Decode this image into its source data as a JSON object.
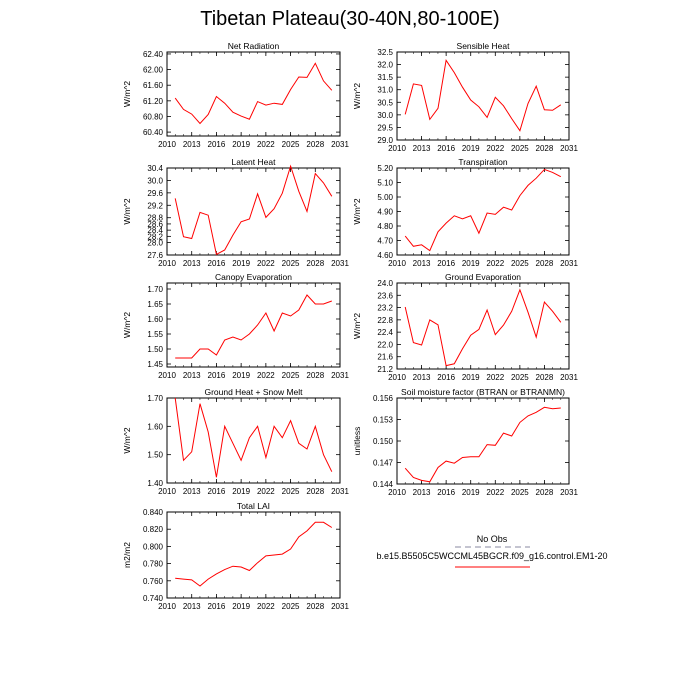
{
  "title": "Tibetan Plateau(30-40N,80-100E)",
  "legend": {
    "obs_label": "No Obs",
    "model_label": "b.e15.B5505C5WCCML45BGCR.f09_g16.control.EM1-20",
    "obs_color": "#b0b0c0",
    "model_color": "#ff0000"
  },
  "chart_data": [
    {
      "type": "line",
      "title": "Net Radiation",
      "ylabel": "W/m^2",
      "x": [
        2011,
        2012,
        2013,
        2014,
        2015,
        2016,
        2017,
        2018,
        2019,
        2020,
        2021,
        2022,
        2023,
        2024,
        2025,
        2026,
        2027,
        2028,
        2029,
        2030
      ],
      "xticks": [
        "2010",
        "2013",
        "2016",
        "2019",
        "2022",
        "2025",
        "2028",
        "2031"
      ],
      "xlim": [
        2010,
        2031
      ],
      "ylim": [
        60.3,
        62.45
      ],
      "yticks": [
        "60.40",
        "60.80",
        "61.20",
        "61.60",
        "62.00",
        "62.40"
      ],
      "color": "#ff0000",
      "values": [
        61.27,
        60.98,
        60.86,
        60.62,
        60.85,
        61.31,
        61.14,
        60.91,
        60.81,
        60.73,
        61.18,
        61.09,
        61.14,
        61.11,
        61.49,
        61.81,
        61.8,
        62.16,
        61.71,
        61.47
      ]
    },
    {
      "type": "line",
      "title": "Sensible Heat",
      "ylabel": "W/m^2",
      "x": [
        2011,
        2012,
        2013,
        2014,
        2015,
        2016,
        2017,
        2018,
        2019,
        2020,
        2021,
        2022,
        2023,
        2024,
        2025,
        2026,
        2027,
        2028,
        2029,
        2030
      ],
      "xticks": [
        "2010",
        "2013",
        "2016",
        "2019",
        "2022",
        "2025",
        "2028",
        "2031"
      ],
      "xlim": [
        2010,
        2031
      ],
      "ylim": [
        29.0,
        32.5
      ],
      "yticks": [
        "29.0",
        "29.5",
        "30.0",
        "30.5",
        "31.0",
        "31.5",
        "32.0",
        "32.5"
      ],
      "color": "#ff0000",
      "values": [
        30.02,
        31.23,
        31.17,
        29.82,
        30.26,
        32.17,
        31.68,
        31.1,
        30.59,
        30.32,
        29.9,
        30.7,
        30.36,
        29.85,
        29.37,
        30.45,
        31.14,
        30.2,
        30.18,
        30.4
      ]
    },
    {
      "type": "line",
      "title": "Latent Heat",
      "ylabel": "W/m^2",
      "x": [
        2011,
        2012,
        2013,
        2014,
        2015,
        2016,
        2017,
        2018,
        2019,
        2020,
        2021,
        2022,
        2023,
        2024,
        2025,
        2026,
        2027,
        2028,
        2029,
        2030
      ],
      "xticks": [
        "2010",
        "2013",
        "2016",
        "2019",
        "2022",
        "2025",
        "2028",
        "2031"
      ],
      "xlim": [
        2010,
        2031
      ],
      "ylim": [
        27.6,
        30.4
      ],
      "yticks": [
        "27.6",
        "28.0",
        "28.2",
        "28.4",
        "28.6",
        "28.8",
        "29.2",
        "29.6",
        "30.0",
        "30.4"
      ],
      "color": "#ff0000",
      "values": [
        29.42,
        28.19,
        28.13,
        28.97,
        28.88,
        27.62,
        27.76,
        28.24,
        28.67,
        28.76,
        29.57,
        28.81,
        29.09,
        29.59,
        30.46,
        29.65,
        29.0,
        30.22,
        29.92,
        29.49
      ]
    },
    {
      "type": "line",
      "title": "Transpiration",
      "ylabel": "W/m^2",
      "x": [
        2011,
        2012,
        2013,
        2014,
        2015,
        2016,
        2017,
        2018,
        2019,
        2020,
        2021,
        2022,
        2023,
        2024,
        2025,
        2026,
        2027,
        2028,
        2029,
        2030
      ],
      "xticks": [
        "2010",
        "2013",
        "2016",
        "2019",
        "2022",
        "2025",
        "2028",
        "2031"
      ],
      "xlim": [
        2010,
        2031
      ],
      "ylim": [
        4.6,
        5.2
      ],
      "yticks": [
        "4.60",
        "4.70",
        "4.80",
        "4.90",
        "5.00",
        "5.10",
        "5.20"
      ],
      "color": "#ff0000",
      "values": [
        4.73,
        4.66,
        4.67,
        4.63,
        4.76,
        4.82,
        4.87,
        4.85,
        4.87,
        4.75,
        4.89,
        4.88,
        4.93,
        4.91,
        5.01,
        5.08,
        5.13,
        5.19,
        5.17,
        5.14
      ]
    },
    {
      "type": "line",
      "title": "Canopy Evaporation",
      "ylabel": "W/m^2",
      "x": [
        2011,
        2012,
        2013,
        2014,
        2015,
        2016,
        2017,
        2018,
        2019,
        2020,
        2021,
        2022,
        2023,
        2024,
        2025,
        2026,
        2027,
        2028,
        2029,
        2030
      ],
      "xticks": [
        "2010",
        "2013",
        "2016",
        "2019",
        "2022",
        "2025",
        "2028",
        "2031"
      ],
      "xlim": [
        2010,
        2031
      ],
      "ylim": [
        1.44,
        1.72
      ],
      "yticks": [
        "1.45",
        "1.50",
        "1.55",
        "1.60",
        "1.65",
        "1.70"
      ],
      "color": "#ff0000",
      "values": [
        1.47,
        1.47,
        1.47,
        1.5,
        1.5,
        1.48,
        1.53,
        1.54,
        1.53,
        1.55,
        1.58,
        1.62,
        1.56,
        1.62,
        1.61,
        1.63,
        1.68,
        1.65,
        1.65,
        1.66
      ]
    },
    {
      "type": "line",
      "title": "Ground Evaporation",
      "ylabel": "W/m^2",
      "x": [
        2011,
        2012,
        2013,
        2014,
        2015,
        2016,
        2017,
        2018,
        2019,
        2020,
        2021,
        2022,
        2023,
        2024,
        2025,
        2026,
        2027,
        2028,
        2029,
        2030
      ],
      "xticks": [
        "2010",
        "2013",
        "2016",
        "2019",
        "2022",
        "2025",
        "2028",
        "2031"
      ],
      "xlim": [
        2010,
        2031
      ],
      "ylim": [
        21.2,
        24.0
      ],
      "yticks": [
        "21.2",
        "21.6",
        "22.0",
        "22.4",
        "22.8",
        "23.2",
        "23.6",
        "24.0"
      ],
      "color": "#ff0000",
      "values": [
        23.22,
        22.06,
        21.98,
        22.8,
        22.64,
        21.31,
        21.37,
        21.86,
        22.3,
        22.49,
        23.12,
        22.32,
        22.63,
        23.08,
        23.78,
        23.05,
        22.24,
        23.38,
        23.08,
        22.72
      ]
    },
    {
      "type": "line",
      "title": "Ground Heat + Snow Melt",
      "ylabel": "W/m^2",
      "x": [
        2011,
        2012,
        2013,
        2014,
        2015,
        2016,
        2017,
        2018,
        2019,
        2020,
        2021,
        2022,
        2023,
        2024,
        2025,
        2026,
        2027,
        2028,
        2029,
        2030
      ],
      "xticks": [
        "2010",
        "2013",
        "2016",
        "2019",
        "2022",
        "2025",
        "2028",
        "2031"
      ],
      "xlim": [
        2010,
        2031
      ],
      "ylim": [
        1.4,
        1.7
      ],
      "yticks": [
        "1.40",
        "1.50",
        "1.60",
        "1.70"
      ],
      "color": "#ff0000",
      "values": [
        1.7,
        1.48,
        1.51,
        1.68,
        1.58,
        1.42,
        1.6,
        1.54,
        1.48,
        1.56,
        1.6,
        1.49,
        1.6,
        1.56,
        1.62,
        1.54,
        1.52,
        1.6,
        1.5,
        1.44
      ]
    },
    {
      "type": "line",
      "title": "Soil moisture factor (BTRAN or BTRANMN)",
      "ylabel": "unitless",
      "x": [
        2011,
        2012,
        2013,
        2014,
        2015,
        2016,
        2017,
        2018,
        2019,
        2020,
        2021,
        2022,
        2023,
        2024,
        2025,
        2026,
        2027,
        2028,
        2029,
        2030
      ],
      "xticks": [
        "2010",
        "2013",
        "2016",
        "2019",
        "2022",
        "2025",
        "2028",
        "2031"
      ],
      "xlim": [
        2010,
        2031
      ],
      "ylim": [
        0.144,
        0.156
      ],
      "yticks": [
        "0.144",
        "0.147",
        "0.150",
        "0.153",
        "0.156"
      ],
      "color": "#ff0000",
      "values": [
        0.1462,
        0.1449,
        0.1445,
        0.1443,
        0.1463,
        0.1472,
        0.1469,
        0.1477,
        0.1478,
        0.1478,
        0.1495,
        0.1494,
        0.1511,
        0.1507,
        0.1526,
        0.1535,
        0.154,
        0.1547,
        0.1545,
        0.1546
      ]
    },
    {
      "type": "line",
      "title": "Total LAI",
      "ylabel": "m2/m2",
      "x": [
        2011,
        2012,
        2013,
        2014,
        2015,
        2016,
        2017,
        2018,
        2019,
        2020,
        2021,
        2022,
        2023,
        2024,
        2025,
        2026,
        2027,
        2028,
        2029,
        2030
      ],
      "xticks": [
        "2010",
        "2013",
        "2016",
        "2019",
        "2022",
        "2025",
        "2028",
        "2031"
      ],
      "xlim": [
        2010,
        2031
      ],
      "ylim": [
        0.74,
        0.84
      ],
      "yticks": [
        "0.740",
        "0.760",
        "0.780",
        "0.800",
        "0.820",
        "0.840"
      ],
      "color": "#ff0000",
      "values": [
        0.763,
        0.762,
        0.761,
        0.754,
        0.762,
        0.768,
        0.773,
        0.777,
        0.776,
        0.772,
        0.781,
        0.789,
        0.79,
        0.791,
        0.797,
        0.811,
        0.818,
        0.828,
        0.828,
        0.822
      ]
    }
  ]
}
